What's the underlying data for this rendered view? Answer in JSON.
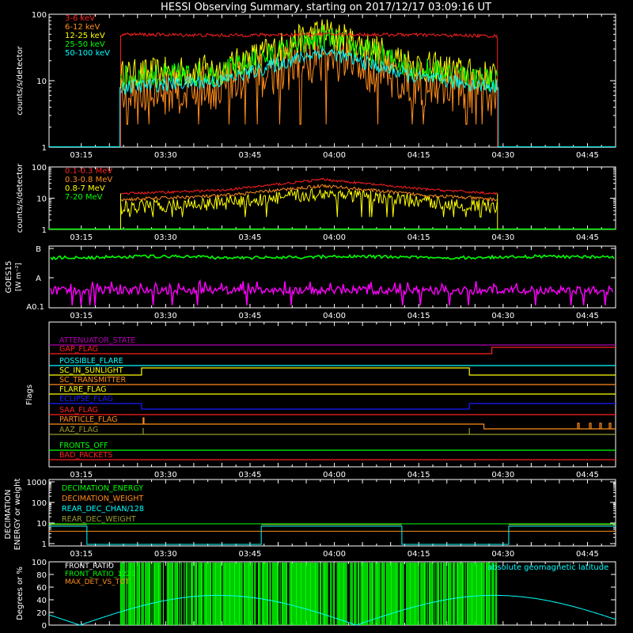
{
  "title": "HESSI Observing Summary, starting on 2017/12/17 03:09:16 UT",
  "colors": {
    "red": "#ff2020",
    "orange": "#ff8c1a",
    "yellow": "#ffff00",
    "green": "#00ff00",
    "cyan": "#00ffff",
    "magenta": "#ff00ff",
    "blue": "#1a1aff",
    "olive": "#9a9a30",
    "purple": "#b000b0",
    "white": "#ffffff"
  },
  "chart_data": [
    {
      "id": "lo",
      "type": "line",
      "ylabel": "counts/s/detector",
      "yscale": "log",
      "ylim": [
        1,
        100
      ],
      "ytick_labels": [
        "1",
        "10",
        "100"
      ],
      "xlim_minutes": [
        9.27,
        50.0
      ],
      "xtick_labels": [
        "03:15",
        "03:30",
        "03:45",
        "04:00",
        "04:15",
        "04:30",
        "04:45"
      ],
      "data_window": [
        "03:22",
        "04:29"
      ],
      "series": [
        {
          "name": "3-6 keV",
          "color": "red",
          "values": [
            50,
            48,
            50,
            49,
            47
          ]
        },
        {
          "name": "6-12 keV",
          "color": "orange",
          "values": [
            6,
            8,
            22,
            9,
            6
          ]
        },
        {
          "name": "12-25 keV",
          "color": "yellow",
          "values": [
            12,
            15,
            55,
            17,
            11
          ]
        },
        {
          "name": "25-50 keV",
          "color": "green",
          "values": [
            11,
            13,
            45,
            15,
            10
          ]
        },
        {
          "name": "50-100 keV",
          "color": "cyan",
          "values": [
            8,
            10,
            28,
            11,
            8
          ]
        }
      ],
      "x_nodes": [
        "03:22",
        "03:40",
        "03:58",
        "04:15",
        "04:29"
      ]
    },
    {
      "id": "hi",
      "type": "line",
      "ylabel": "counts/s/detector",
      "yscale": "log",
      "ylim": [
        1,
        100
      ],
      "ytick_labels": [
        "1",
        "10",
        "100"
      ],
      "xtick_labels": [
        "03:15",
        "03:30",
        "03:45",
        "04:00",
        "04:15",
        "04:30",
        "04:45"
      ],
      "series": [
        {
          "name": "0.1-0.3 MeV",
          "color": "red",
          "values": [
            14,
            18,
            40,
            20,
            14
          ]
        },
        {
          "name": "0.3-0.8 MeV",
          "color": "orange",
          "values": [
            9,
            12,
            25,
            13,
            9
          ]
        },
        {
          "name": "0.8-7 MeV",
          "color": "yellow",
          "values": [
            5,
            7,
            14,
            8,
            5
          ]
        },
        {
          "name": "7-20 MeV",
          "color": "green",
          "values": [
            1,
            1,
            1,
            1,
            1
          ]
        }
      ]
    },
    {
      "id": "goes",
      "type": "line",
      "ylabel": "GOES15 [W m⁻²]",
      "ytick_labels": [
        "B",
        "A",
        "A0.1"
      ],
      "series": [
        {
          "color": "green",
          "level": "B"
        },
        {
          "color": "magenta",
          "level": "A0.1–A"
        }
      ]
    },
    {
      "id": "flags",
      "type": "line",
      "ylabel": "Flags",
      "xtick_labels": [
        "03:15",
        "03:30",
        "03:45",
        "04:00",
        "04:15",
        "04:30",
        "04:45"
      ],
      "flags": [
        {
          "label": "ATTENUATOR_STATE",
          "color": "purple"
        },
        {
          "label": "GAP_FLAG",
          "color": "red"
        },
        {
          "label": "POSSIBLE_FLARE",
          "color": "cyan"
        },
        {
          "label": "SC_IN_SUNLIGHT",
          "color": "yellow"
        },
        {
          "label": "SC_TRANSMITTER",
          "color": "orange"
        },
        {
          "label": "FLARE_FLAG",
          "color": "yellow"
        },
        {
          "label": "ECLIPSE_FLAG",
          "color": "blue"
        },
        {
          "label": "SAA_FLAG",
          "color": "red"
        },
        {
          "label": "PARTICLE_FLAG",
          "color": "orange"
        },
        {
          "label": "AAZ_FLAG",
          "color": "olive"
        },
        {
          "label": "FRONTS_OFF",
          "color": "green"
        },
        {
          "label": "BAD_PACKETS",
          "color": "red"
        }
      ]
    },
    {
      "id": "dec",
      "type": "line",
      "ylabel": "DECIMATION ENERGY or weight",
      "yscale": "log",
      "ytick_labels": [
        "1",
        "10",
        "100",
        "1000"
      ],
      "xtick_labels": [
        "03:15",
        "03:30",
        "03:45",
        "04:00",
        "04:15",
        "04:30",
        "04:45"
      ],
      "series": [
        {
          "name": "DECIMATION_ENERGY",
          "color": "green"
        },
        {
          "name": "DECIMATION_WEIGHT",
          "color": "orange"
        },
        {
          "name": "REAR_DEC_CHAN/128",
          "color": "cyan"
        },
        {
          "name": "REAR_DEC_WEIGHT",
          "color": "olive"
        }
      ]
    },
    {
      "id": "ratio",
      "type": "line",
      "ylabel": "Degrees or %",
      "ylim": [
        0,
        100
      ],
      "ytick_labels": [
        "0",
        "20",
        "40",
        "60",
        "80",
        "100"
      ],
      "series": [
        {
          "name": "FRONT_RATIO",
          "color": "white"
        },
        {
          "name": "FRONT_RATIO_1225",
          "color": "green"
        },
        {
          "name": "MAX_DET_VS_TOT",
          "color": "orange"
        }
      ],
      "annotation": "absolute geomagnetic latitude"
    }
  ]
}
